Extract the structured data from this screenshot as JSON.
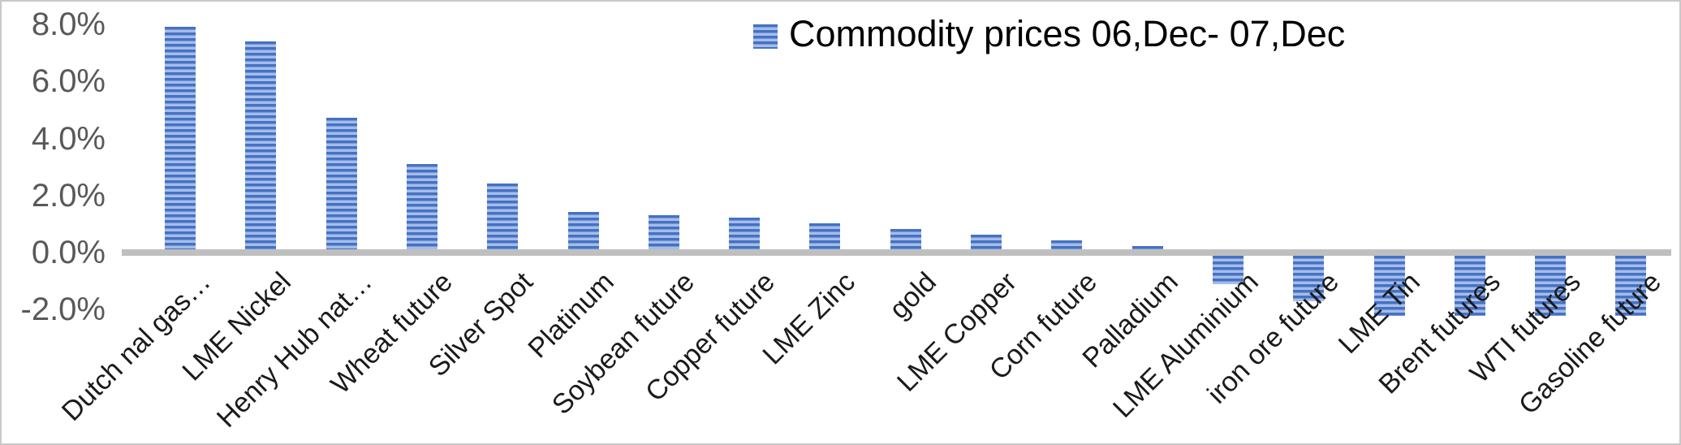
{
  "chart_data": {
    "type": "bar",
    "title": "",
    "legend": "Commodity prices 06,Dec- 07,Dec",
    "legend_position": "top-right",
    "grid": false,
    "categories": [
      "Dutch nal gas…",
      "LME Nickel",
      "Henry Hub nat…",
      "Wheat future",
      "Silver Spot",
      "Platinum",
      "Soybean future",
      "Copper future",
      "LME Zinc",
      "gold",
      "LME Copper",
      "Corn future",
      "Palladium",
      "LME Aluminium",
      "iron ore future",
      "LME Tin",
      "Brent futures",
      "WTI futures",
      "Gasoline future"
    ],
    "values": [
      7.8,
      7.3,
      4.6,
      3.0,
      2.3,
      1.3,
      1.2,
      1.1,
      0.9,
      0.7,
      0.5,
      0.3,
      0.1,
      -1.0,
      -1.6,
      -2.1,
      -2.1,
      -2.1,
      -2.1
    ],
    "value_unit": "%",
    "xlabel": "",
    "ylabel": "",
    "ylim": [
      -2.5,
      8.5
    ],
    "y_ticks": [
      {
        "label": "8.0%",
        "value": 8
      },
      {
        "label": "6.0%",
        "value": 6
      },
      {
        "label": "4.0%",
        "value": 4
      },
      {
        "label": "2.0%",
        "value": 2
      },
      {
        "label": "0.0%",
        "value": 0
      },
      {
        "label": "-2.0%",
        "value": -2
      }
    ],
    "colors": {
      "bar_stripe_dark": "#4472C4",
      "bar_stripe_light": "#A6BCE8",
      "axis_line": "#BFBFBF",
      "y_tick_text": "#595959",
      "x_label_text": "#1A1A1A",
      "legend_text": "#000000",
      "frame_border": "#C9C9C9",
      "background": "#FFFFFF"
    }
  }
}
